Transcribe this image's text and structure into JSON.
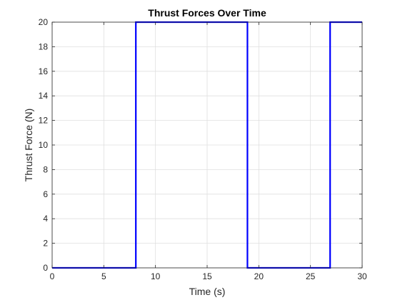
{
  "chart_data": {
    "type": "line",
    "title": "Thrust Forces Over Time",
    "xlabel": "Time (s)",
    "ylabel": "Thrust Force (N)",
    "xlim": [
      0,
      30
    ],
    "ylim": [
      0,
      20
    ],
    "xticks": [
      0,
      5,
      10,
      15,
      20,
      25,
      30
    ],
    "yticks": [
      0,
      2,
      4,
      6,
      8,
      10,
      12,
      14,
      16,
      18,
      20
    ],
    "grid": true,
    "legend": false,
    "series": [
      {
        "color": "#0000ff",
        "x": [
          0,
          8.1,
          8.1,
          18.9,
          18.9,
          26.9,
          26.9,
          30
        ],
        "y": [
          0,
          0,
          20,
          20,
          0,
          0,
          20,
          20
        ]
      }
    ]
  }
}
